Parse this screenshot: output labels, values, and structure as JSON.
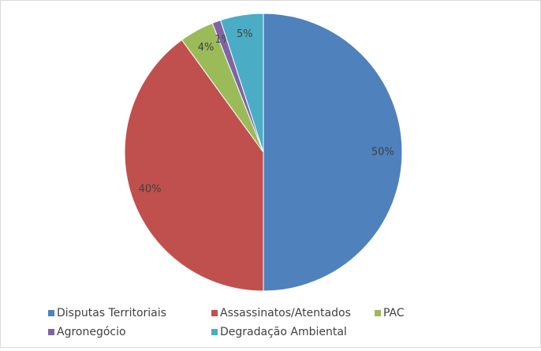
{
  "chart_data": {
    "type": "pie",
    "categories": [
      "Disputas Territoriais",
      "Assassinatos/Atentados",
      "PAC",
      "Agronegócio",
      "Degradação Ambiental"
    ],
    "values": [
      50,
      40,
      4,
      1,
      5
    ],
    "value_labels": [
      "50%",
      "40%",
      "4%",
      "1%",
      "5%"
    ],
    "colors": [
      "#4f81bd",
      "#c0504d",
      "#9bbb59",
      "#8064a2",
      "#4bacc6"
    ],
    "legend": "bottom"
  }
}
